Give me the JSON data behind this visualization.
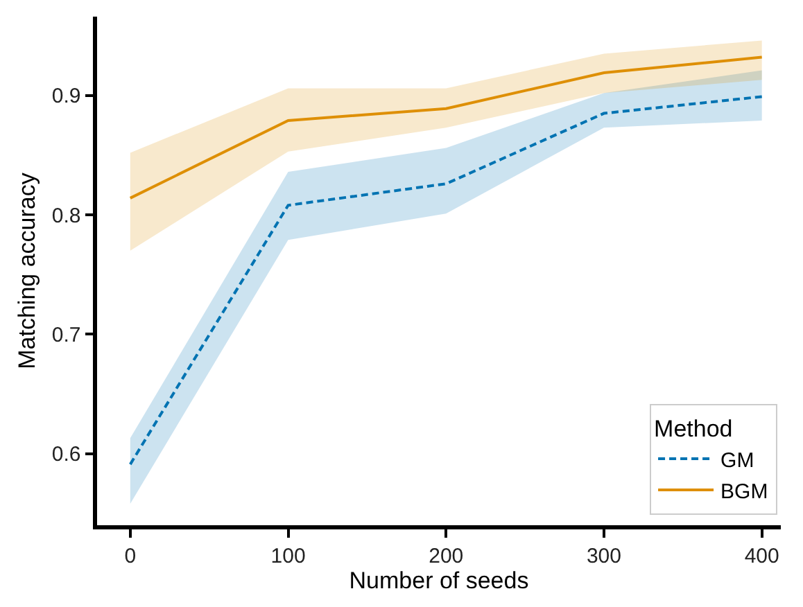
{
  "chart_data": {
    "type": "line",
    "xlabel": "Number of seeds",
    "ylabel": "Matching accuracy",
    "legend_title": "Method",
    "x": [
      0,
      100,
      200,
      300,
      400
    ],
    "series": [
      {
        "name": "GM",
        "color": "#0173b2",
        "line_style": "dashed",
        "values": [
          0.591,
          0.808,
          0.826,
          0.885,
          0.899
        ],
        "lower": [
          0.558,
          0.779,
          0.801,
          0.873,
          0.879
        ],
        "upper": [
          0.613,
          0.836,
          0.856,
          0.902,
          0.921
        ]
      },
      {
        "name": "BGM",
        "color": "#de8f05",
        "line_style": "solid",
        "values": [
          0.814,
          0.879,
          0.889,
          0.919,
          0.932
        ],
        "lower": [
          0.77,
          0.853,
          0.873,
          0.902,
          0.913
        ],
        "upper": [
          0.852,
          0.906,
          0.906,
          0.935,
          0.946
        ]
      }
    ],
    "xlim": [
      -21,
      412
    ],
    "ylim": [
      0.54,
      0.966
    ],
    "xticks": [
      0,
      100,
      200,
      300,
      400
    ],
    "yticks": [
      0.6,
      0.7,
      0.8,
      0.9
    ],
    "legend": "bottom right",
    "marker": "none"
  }
}
